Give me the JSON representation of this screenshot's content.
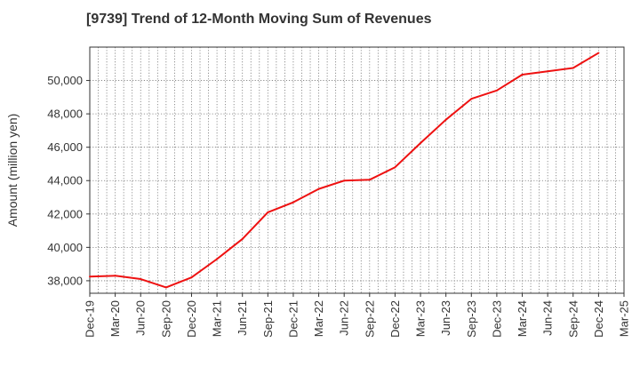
{
  "chart_data": {
    "type": "line",
    "title": "[9739]  Trend of 12-Month Moving Sum of Revenues",
    "xlabel": "",
    "ylabel": "Amount (million yen)",
    "x_ticks": [
      "Dec-19",
      "Mar-20",
      "Jun-20",
      "Sep-20",
      "Dec-20",
      "Mar-21",
      "Jun-21",
      "Sep-21",
      "Dec-21",
      "Mar-22",
      "Jun-22",
      "Sep-22",
      "Dec-22",
      "Mar-23",
      "Jun-23",
      "Sep-23",
      "Dec-23",
      "Mar-24",
      "Jun-24",
      "Sep-24",
      "Dec-24",
      "Mar-25"
    ],
    "y_ticks": [
      38000,
      40000,
      42000,
      44000,
      46000,
      48000,
      50000
    ],
    "y_tick_labels": [
      "38,000",
      "40,000",
      "42,000",
      "44,000",
      "46,000",
      "48,000",
      "50,000"
    ],
    "ylim": [
      37250,
      52000
    ],
    "grid": true,
    "series": [
      {
        "color": "#ee1111",
        "x": [
          "Dec-19",
          "Mar-20",
          "Jun-20",
          "Sep-20",
          "Dec-20",
          "Mar-21",
          "Jun-21",
          "Sep-21",
          "Dec-21",
          "Mar-22",
          "Jun-22",
          "Sep-22",
          "Dec-22",
          "Mar-23",
          "Jun-23",
          "Sep-23",
          "Dec-23",
          "Mar-24",
          "Jun-24",
          "Sep-24",
          "Dec-24"
        ],
        "values": [
          38250,
          38300,
          38100,
          37600,
          38200,
          39300,
          40500,
          42100,
          42700,
          43500,
          44000,
          44050,
          44800,
          46250,
          47650,
          48900,
          49400,
          50350,
          50550,
          50750,
          51650
        ]
      }
    ]
  }
}
